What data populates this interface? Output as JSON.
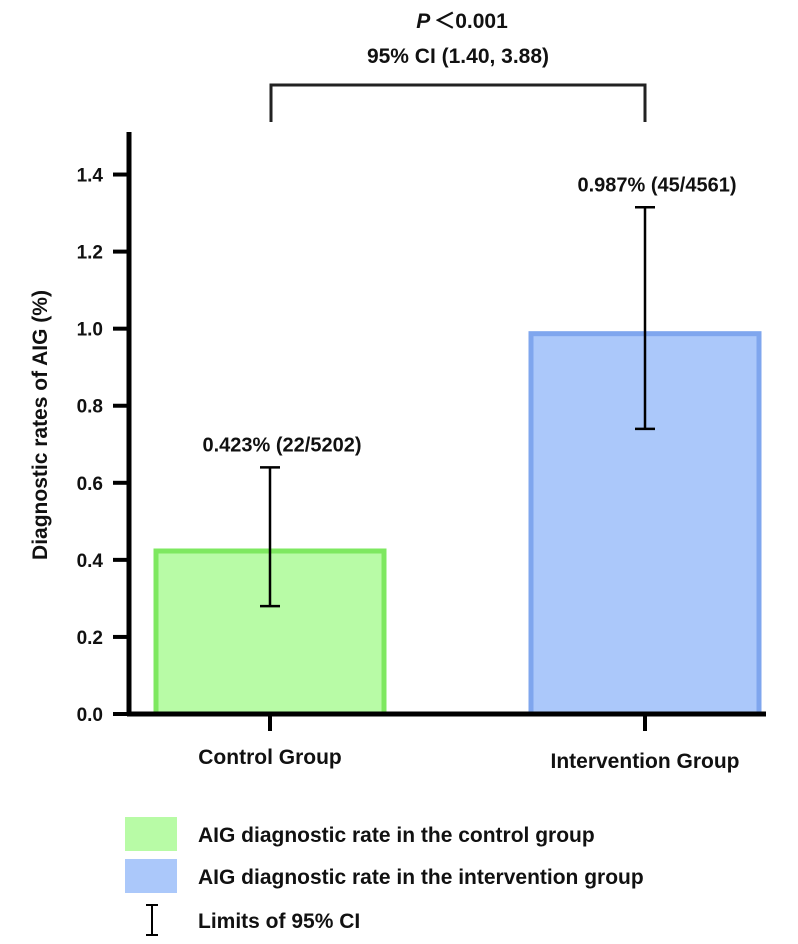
{
  "chart_data": {
    "type": "bar",
    "ylabel": "Diagnostic rates of AIG (%)",
    "ylim": [
      0,
      1.5
    ],
    "yticks": [
      0.0,
      0.2,
      0.4,
      0.6,
      0.8,
      1.0,
      1.2,
      1.4
    ],
    "ytick_labels": [
      "0.0",
      "0.2",
      "0.4",
      "0.6",
      "0.8",
      "1.0",
      "1.2",
      "1.4"
    ],
    "categories": [
      "Control Group",
      "Intervention Group"
    ],
    "values": [
      0.423,
      0.987
    ],
    "ci_lower": [
      0.28,
      0.74
    ],
    "ci_upper": [
      0.64,
      1.315
    ],
    "data_labels": [
      "0.423% (22/5202)",
      "0.987% (45/4561)"
    ],
    "bar_fill": [
      "#b8fba6",
      "#abc8fa"
    ],
    "bar_stroke": [
      "#7ee860",
      "#7fa6ee"
    ],
    "grid": false,
    "comparison": {
      "p_symbol": "P",
      "p_text": "＜0.001",
      "ci_text": "95% CI (1.40, 3.88)"
    },
    "legend": {
      "placement": "bottom",
      "items": [
        {
          "label": "AIG diagnostic rate in the control group",
          "color": "#b8fba6"
        },
        {
          "label": "AIG diagnostic rate in the intervention group",
          "color": "#abc8fa"
        },
        {
          "label": "Limits of 95% CI",
          "icon": "error-bar-icon"
        }
      ]
    }
  }
}
